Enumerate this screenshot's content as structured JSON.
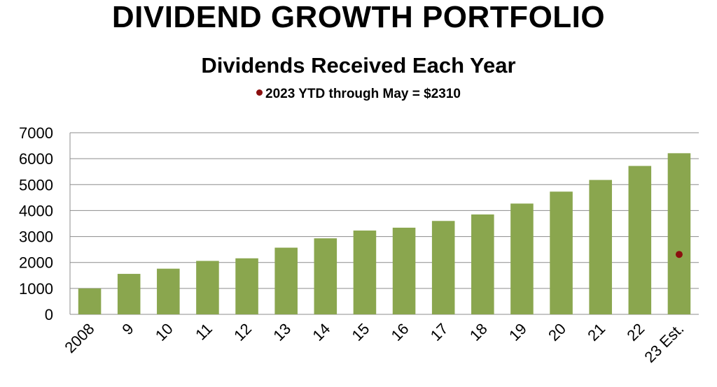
{
  "page": {
    "title": "DIVIDEND GROWTH PORTFOLIO"
  },
  "chart_data": {
    "type": "bar",
    "title": "Dividends Received Each Year",
    "annotation": "2023 YTD through May = $2310",
    "categories": [
      "2008",
      "9",
      "10",
      "11",
      "12",
      "13",
      "14",
      "15",
      "16",
      "17",
      "18",
      "19",
      "20",
      "21",
      "22",
      "23 Est."
    ],
    "values": [
      1000,
      1560,
      1760,
      2060,
      2160,
      2570,
      2930,
      3230,
      3340,
      3600,
      3850,
      4270,
      4730,
      5180,
      5720,
      6210
    ],
    "point": {
      "category": "23 Est.",
      "value": 2310
    },
    "ylim": [
      0,
      7000
    ],
    "yticks": [
      0,
      1000,
      2000,
      3000,
      4000,
      5000,
      6000,
      7000
    ],
    "grid": true,
    "legend": "none",
    "xlabel": "",
    "ylabel": "",
    "colors": {
      "bar": "#8aa64e",
      "point": "#8b0f0f",
      "grid": "#8c8c8c"
    }
  }
}
